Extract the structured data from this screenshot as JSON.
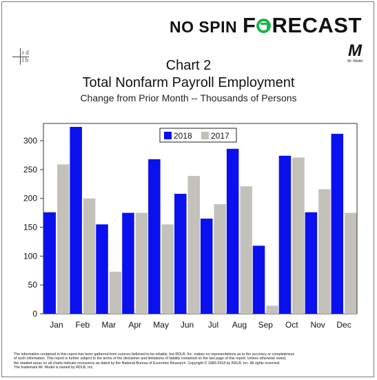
{
  "brand": {
    "left": "NO SPIN",
    "right_prefix": "F",
    "right_suffix": "RECAST"
  },
  "badge": {
    "rdlb_top": "r d",
    "rdlb_bottom": "l b",
    "mr_model_logo": "M",
    "mr_model_caption": "Mr. Model"
  },
  "footer": {
    "line1": "The information contained in this report has been gathered from sources believed to be reliable, but RDLB, Inc. makes no representations as to the accuracy or completeness",
    "line2": "of such information. This report is further subject to the terms of the disclaimer and limitations of liability contained on the last page of this report. Unless otherwise noted,",
    "line3": "the shaded areas on all charts indicate recessions as dated by the National Bureau of Economic Research. Copyright © 1989-2018 by RDLB, Inc. All rights reserved.",
    "line4": "The trademark Mr. Model is owned by RDLB, Inc."
  },
  "colors": {
    "series_2018": "#0a10ee",
    "series_2017": "#c4c1bb",
    "brand_green": "#1bb34a"
  },
  "chart_data": {
    "type": "bar",
    "title": "Chart 2",
    "subtitle": "Total Nonfarm Payroll Employment",
    "caption": "Change from Prior Month -- Thousands of Persons",
    "categories": [
      "Jan",
      "Feb",
      "Mar",
      "Apr",
      "May",
      "Jun",
      "Jul",
      "Aug",
      "Sep",
      "Oct",
      "Nov",
      "Dec"
    ],
    "series": [
      {
        "name": "2018",
        "values": [
          176,
          324,
          155,
          175,
          268,
          208,
          165,
          286,
          118,
          274,
          176,
          312
        ]
      },
      {
        "name": "2017",
        "values": [
          259,
          200,
          73,
          175,
          155,
          239,
          190,
          221,
          14,
          271,
          216,
          175
        ]
      }
    ],
    "ylim": [
      0,
      330
    ],
    "yticks": [
      "0",
      "50",
      "100",
      "150",
      "200",
      "250",
      "300"
    ],
    "legend_position": "top-center",
    "grid": false
  }
}
